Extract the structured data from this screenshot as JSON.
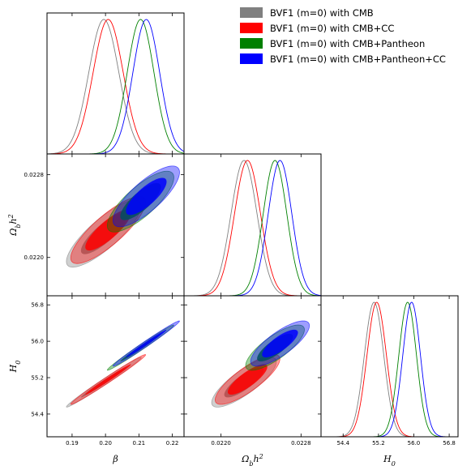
{
  "chart_data": {
    "type": "triangle-corner",
    "parameters": [
      {
        "key": "beta",
        "label_main": "β",
        "label_sup": "",
        "ticks": [
          "0.19",
          "0.20",
          "0.21",
          "0.22"
        ]
      },
      {
        "key": "omega",
        "label_main": "Ω",
        "label_sub": "b",
        "label_rest": "h",
        "label_sup": "2",
        "ticks": [
          "0.0220",
          "0.0228"
        ]
      },
      {
        "key": "H0",
        "label_main": "H",
        "label_sub": "0",
        "ticks": [
          "54.4",
          "55.2",
          "56.0",
          "56.8"
        ]
      }
    ],
    "axis_ranges": {
      "beta": [
        0.1825,
        0.2235
      ],
      "omega": [
        0.02163,
        0.023
      ],
      "H0": [
        53.9,
        57.0
      ]
    },
    "omega_y_ticks": [
      "0.0220",
      "0.0228"
    ],
    "H0_y_ticks": [
      "54.4",
      "55.2",
      "56.0",
      "56.8"
    ],
    "legend": {
      "placement": "top-right",
      "entries": [
        "BVF1 (m=0) with CMB",
        "BVF1 (m=0) with CMB+CC",
        "BVF1 (m=0) with CMB+Pantheon",
        "BVF1 (m=0) with CMB+Pantheon+CC"
      ]
    },
    "series": [
      {
        "color": "#808080",
        "beta": [
          0.1995,
          0.0045
        ],
        "omega": [
          0.02223,
          0.00013
        ],
        "H0": [
          55.1,
          0.22
        ],
        "corr_b_o": 0.83,
        "corr_b_h": 0.99,
        "corr_o_h": 0.82
      },
      {
        "color": "#ff0000",
        "beta": [
          0.2008,
          0.0045
        ],
        "omega": [
          0.022265,
          0.00013
        ],
        "H0": [
          55.16,
          0.22
        ],
        "corr_b_o": 0.83,
        "corr_b_h": 0.99,
        "corr_o_h": 0.82
      },
      {
        "color": "#008000",
        "beta": [
          0.2105,
          0.004
        ],
        "omega": [
          0.02254,
          0.000118
        ],
        "H0": [
          55.86,
          0.2
        ],
        "corr_b_o": 0.79,
        "corr_b_h": 0.99,
        "corr_o_h": 0.79
      },
      {
        "color": "#0000ff",
        "beta": [
          0.2122,
          0.004
        ],
        "omega": [
          0.02259,
          0.000118
        ],
        "H0": [
          55.95,
          0.2
        ],
        "corr_b_o": 0.79,
        "corr_b_h": 0.99,
        "corr_o_h": 0.79
      }
    ]
  }
}
